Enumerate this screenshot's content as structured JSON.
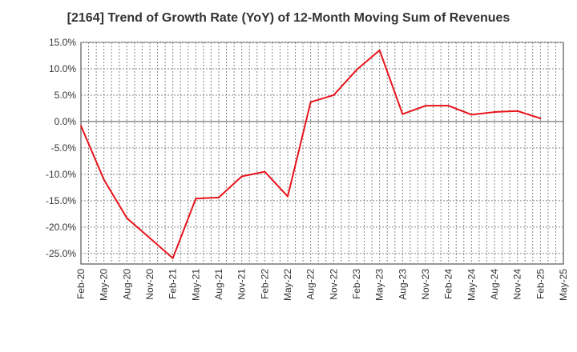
{
  "chart_data": {
    "type": "line",
    "title": "[2164]  Trend of Growth Rate (YoY) of 12-Month Moving Sum of Revenues",
    "xlabel": "",
    "ylabel": "",
    "ylim": [
      -27,
      15
    ],
    "yticks": [
      15,
      10,
      5,
      0,
      -5,
      -10,
      -15,
      -20,
      -25
    ],
    "ytick_labels": [
      "15.0%",
      "10.0%",
      "5.0%",
      "0.0%",
      "-5.0%",
      "-10.0%",
      "-15.0%",
      "-20.0%",
      "-25.0%"
    ],
    "xtick_labels": [
      "Feb-20",
      "May-20",
      "Aug-20",
      "Nov-20",
      "Feb-21",
      "May-21",
      "Aug-21",
      "Nov-21",
      "Feb-22",
      "May-22",
      "Aug-22",
      "Nov-22",
      "Feb-23",
      "May-23",
      "Aug-23",
      "Nov-23",
      "Feb-24",
      "May-24",
      "Aug-24",
      "Nov-24",
      "Feb-25",
      "May-25"
    ],
    "grid": true,
    "line_color": "#e8141c",
    "series": [
      {
        "x": [
          "Feb-20",
          "May-20",
          "Aug-20",
          "Nov-20",
          "Feb-21",
          "May-21",
          "Aug-21",
          "Nov-21",
          "Feb-22",
          "May-22",
          "Aug-22",
          "Nov-22",
          "Feb-23",
          "May-23",
          "Aug-23",
          "Nov-23",
          "Feb-24",
          "May-24",
          "Aug-24",
          "Nov-24",
          "Feb-25"
        ],
        "values": [
          -0.8,
          -11.0,
          -18.3,
          -22.1,
          -25.9,
          -14.6,
          -14.4,
          -10.4,
          -9.5,
          -14.2,
          3.7,
          5.0,
          9.8,
          13.5,
          1.4,
          3.0,
          3.0,
          1.3,
          1.8,
          2.0,
          0.6
        ]
      }
    ]
  }
}
